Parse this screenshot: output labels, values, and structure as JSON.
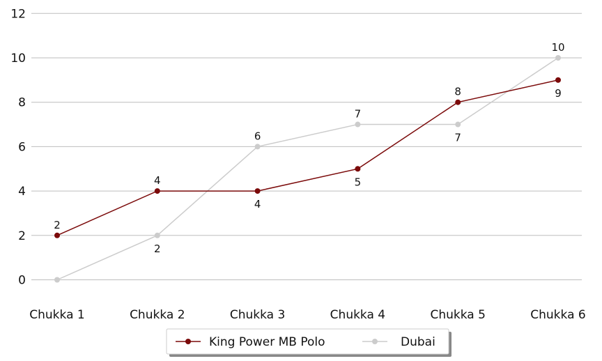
{
  "chart_data": {
    "type": "line",
    "categories": [
      "Chukka 1",
      "Chukka 2",
      "Chukka 3",
      "Chukka 4",
      "Chukka 5",
      "Chukka 6"
    ],
    "series": [
      {
        "name": "King Power MB Polo",
        "values": [
          2,
          4,
          4,
          5,
          8,
          9
        ],
        "color": "#7b0a0a",
        "label_position": [
          "above",
          "above",
          "below",
          "below",
          "above",
          "below"
        ]
      },
      {
        "name": "Dubai",
        "values": [
          0,
          2,
          6,
          7,
          7,
          10
        ],
        "color": "#cccccc",
        "label_position": [
          "none",
          "below",
          "above",
          "above",
          "below",
          "above"
        ]
      }
    ],
    "yticks": [
      0,
      2,
      4,
      6,
      8,
      10,
      12
    ],
    "ylim": [
      -1,
      12
    ],
    "grid": true,
    "legend": "bottom-center",
    "title": "",
    "xlabel": "",
    "ylabel": ""
  }
}
